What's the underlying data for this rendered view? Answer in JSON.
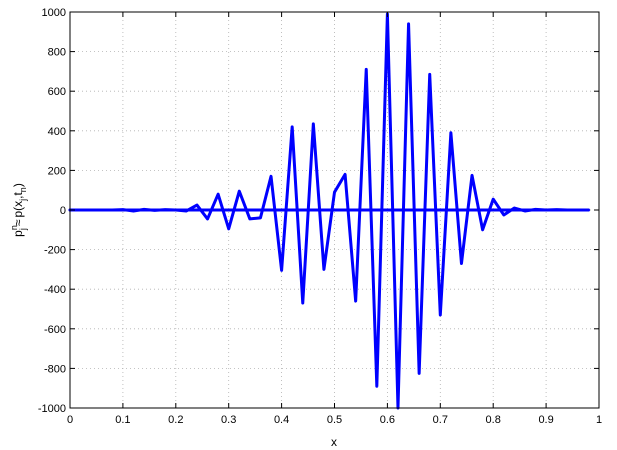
{
  "chart_data": {
    "type": "line",
    "title": "",
    "xlabel": "x",
    "ylabel": {
      "p": "p",
      "p_sup": "n",
      "p_sub": "j",
      "approx": "≈",
      "rest_open": "p(x",
      "x_sub": "j",
      "comma_t": ",t",
      "t_sub": "n",
      "close": ")"
    },
    "xlim": [
      0,
      1
    ],
    "ylim": [
      -1000,
      1000
    ],
    "x_ticks": [
      0,
      0.1,
      0.2,
      0.3,
      0.4,
      0.5,
      0.6,
      0.7,
      0.8,
      0.9,
      1
    ],
    "x_tick_labels": [
      "0",
      "0.1",
      "0.2",
      "0.3",
      "0.4",
      "0.5",
      "0.6",
      "0.7",
      "0.8",
      "0.9",
      "1"
    ],
    "y_ticks": [
      -1000,
      -800,
      -600,
      -400,
      -200,
      0,
      200,
      400,
      600,
      800,
      1000
    ],
    "y_tick_labels": [
      "-1000",
      "-800",
      "-600",
      "-400",
      "-200",
      "0",
      "200",
      "400",
      "600",
      "800",
      "1000"
    ],
    "grid": true,
    "line_color": "#0000ff",
    "series": [
      {
        "x": [
          0,
          0.02,
          0.04,
          0.06,
          0.08,
          0.1,
          0.12,
          0.14,
          0.16,
          0.18,
          0.2,
          0.22,
          0.24,
          0.26,
          0.28,
          0.3,
          0.32,
          0.34,
          0.36,
          0.38,
          0.4,
          0.42,
          0.44,
          0.46,
          0.48,
          0.5,
          0.52,
          0.54,
          0.56,
          0.58,
          0.6,
          0.62,
          0.64,
          0.66,
          0.68,
          0.7,
          0.72,
          0.74,
          0.76,
          0.78,
          0.8,
          0.82,
          0.84,
          0.86,
          0.88,
          0.9,
          0.92,
          0.94,
          0.96,
          0.98
        ],
        "y": [
          0,
          0,
          0,
          0,
          0,
          2,
          -5,
          3,
          -2,
          2,
          0,
          -5,
          25,
          -45,
          80,
          -95,
          95,
          -45,
          -40,
          170,
          -305,
          420,
          -470,
          435,
          -300,
          90,
          180,
          -460,
          710,
          -890,
          990,
          -1000,
          940,
          -825,
          685,
          -530,
          390,
          -270,
          175,
          -100,
          55,
          -25,
          10,
          -5,
          3,
          0,
          2,
          0,
          0,
          0
        ]
      },
      {
        "x": [
          0,
          0.98
        ],
        "y": [
          0,
          0
        ]
      }
    ]
  }
}
